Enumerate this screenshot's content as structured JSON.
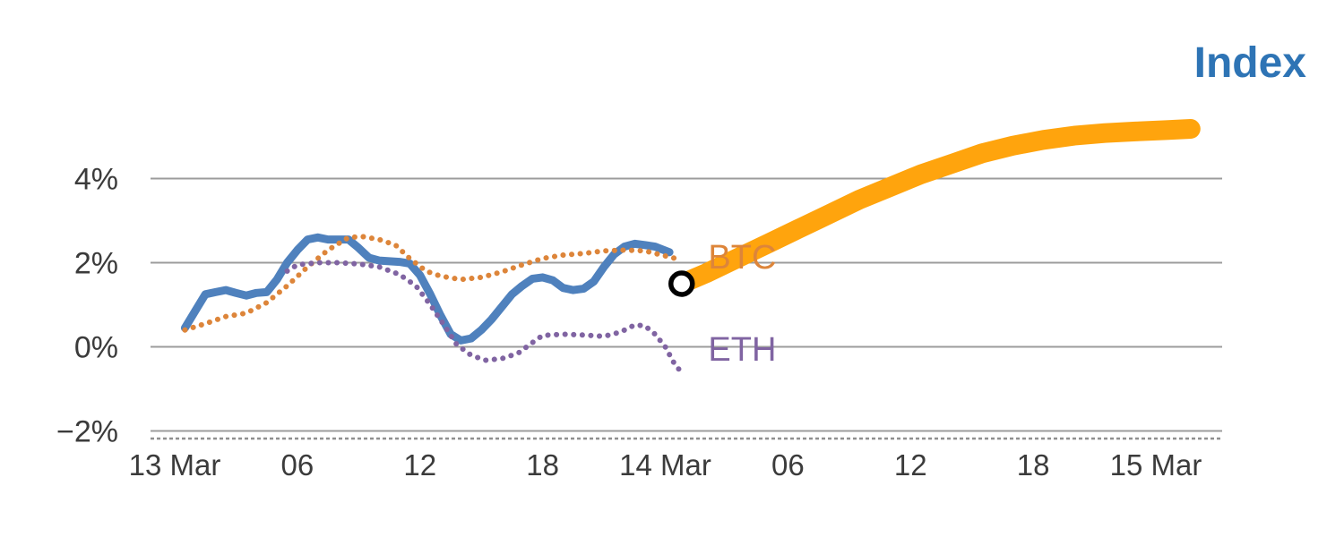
{
  "title": "Index",
  "colors": {
    "title": "#2e74b5",
    "grid": "#9c9c9c",
    "axis": "#8f8f8f",
    "tick_text": "#3b3b3b"
  },
  "chart_data": {
    "type": "line",
    "title": "Index",
    "x_unit": "hours since 13 Mar 00:00",
    "y_unit": "percent change",
    "ylim": [
      -2.2,
      5.5
    ],
    "grid": "horizontal-on",
    "legend_position": "inline-labels",
    "x_axis": {
      "ticks": [
        {
          "t": 0,
          "label": "13 Mar"
        },
        {
          "t": 6,
          "label": "06"
        },
        {
          "t": 12,
          "label": "12"
        },
        {
          "t": 18,
          "label": "18"
        },
        {
          "t": 24,
          "label": "14 Mar"
        },
        {
          "t": 30,
          "label": "06"
        },
        {
          "t": 36,
          "label": "12"
        },
        {
          "t": 42,
          "label": "18"
        },
        {
          "t": 48,
          "label": "15 Mar"
        }
      ]
    },
    "y_axis": {
      "ticks": [
        {
          "value": 4,
          "label": "4%"
        },
        {
          "value": 2,
          "label": "2%"
        },
        {
          "value": 0,
          "label": "0%"
        },
        {
          "value": -2,
          "label": "−2%"
        }
      ]
    },
    "series": [
      {
        "name": "Index",
        "data_name": "index-line",
        "color": "#4f81bd",
        "style": "solid",
        "width": 9,
        "points": [
          [
            0.5,
            0.45
          ],
          [
            1,
            0.85
          ],
          [
            1.5,
            1.25
          ],
          [
            2,
            1.3
          ],
          [
            2.5,
            1.35
          ],
          [
            3,
            1.28
          ],
          [
            3.5,
            1.22
          ],
          [
            4,
            1.28
          ],
          [
            4.5,
            1.3
          ],
          [
            5,
            1.6
          ],
          [
            5.5,
            2.0
          ],
          [
            6,
            2.3
          ],
          [
            6.5,
            2.55
          ],
          [
            7,
            2.6
          ],
          [
            7.5,
            2.55
          ],
          [
            8.5,
            2.55
          ],
          [
            9,
            2.35
          ],
          [
            9.5,
            2.12
          ],
          [
            10,
            2.05
          ],
          [
            11,
            2.02
          ],
          [
            11.5,
            1.98
          ],
          [
            12,
            1.7
          ],
          [
            12.5,
            1.25
          ],
          [
            13,
            0.75
          ],
          [
            13.5,
            0.3
          ],
          [
            14,
            0.15
          ],
          [
            14.5,
            0.2
          ],
          [
            15,
            0.4
          ],
          [
            15.5,
            0.65
          ],
          [
            16,
            0.95
          ],
          [
            16.5,
            1.25
          ],
          [
            17,
            1.45
          ],
          [
            17.5,
            1.62
          ],
          [
            18,
            1.65
          ],
          [
            18.5,
            1.58
          ],
          [
            19,
            1.4
          ],
          [
            19.5,
            1.35
          ],
          [
            20,
            1.38
          ],
          [
            20.5,
            1.55
          ],
          [
            21,
            1.9
          ],
          [
            21.5,
            2.2
          ],
          [
            22,
            2.38
          ],
          [
            22.5,
            2.45
          ],
          [
            23,
            2.42
          ],
          [
            23.5,
            2.38
          ],
          [
            24.2,
            2.25
          ]
        ]
      },
      {
        "name": "BTC",
        "data_name": "btc-line",
        "color": "#dd853a",
        "style": "dotted",
        "width": 6,
        "points": [
          [
            0.5,
            0.4
          ],
          [
            1.5,
            0.55
          ],
          [
            2.5,
            0.72
          ],
          [
            3.5,
            0.8
          ],
          [
            4.5,
            1.05
          ],
          [
            5.5,
            1.45
          ],
          [
            6.5,
            1.9
          ],
          [
            7.5,
            2.3
          ],
          [
            8.5,
            2.6
          ],
          [
            9.2,
            2.62
          ],
          [
            10,
            2.55
          ],
          [
            10.8,
            2.42
          ],
          [
            11.5,
            2.1
          ],
          [
            12.3,
            1.8
          ],
          [
            13,
            1.68
          ],
          [
            14,
            1.6
          ],
          [
            15,
            1.65
          ],
          [
            16,
            1.78
          ],
          [
            17,
            1.95
          ],
          [
            18,
            2.1
          ],
          [
            19,
            2.18
          ],
          [
            20,
            2.22
          ],
          [
            21,
            2.28
          ],
          [
            22,
            2.3
          ],
          [
            23,
            2.28
          ],
          [
            24.5,
            2.1
          ]
        ]
      },
      {
        "name": "ETH",
        "data_name": "eth-line",
        "color": "#8064a2",
        "style": "dotted",
        "width": 6,
        "points": [
          [
            5.5,
            1.8
          ],
          [
            6,
            1.95
          ],
          [
            7,
            2.0
          ],
          [
            8,
            2.0
          ],
          [
            9,
            1.97
          ],
          [
            10,
            1.9
          ],
          [
            11,
            1.72
          ],
          [
            11.8,
            1.45
          ],
          [
            12.5,
            1.0
          ],
          [
            13.2,
            0.5
          ],
          [
            13.8,
            0.05
          ],
          [
            14.5,
            -0.2
          ],
          [
            15.2,
            -0.32
          ],
          [
            16,
            -0.28
          ],
          [
            16.8,
            -0.15
          ],
          [
            17.5,
            0.1
          ],
          [
            18,
            0.27
          ],
          [
            19,
            0.3
          ],
          [
            20,
            0.28
          ],
          [
            21,
            0.25
          ],
          [
            21.8,
            0.35
          ],
          [
            22.5,
            0.52
          ],
          [
            23,
            0.5
          ],
          [
            23.5,
            0.3
          ],
          [
            24,
            0.0
          ],
          [
            24.5,
            -0.45
          ],
          [
            24.8,
            -0.6
          ]
        ]
      },
      {
        "name": "Index forecast",
        "data_name": "index-forecast-line",
        "color": "#ffa40d",
        "style": "solid",
        "width": 22,
        "points": [
          [
            24.8,
            1.5
          ],
          [
            26,
            1.75
          ],
          [
            27.5,
            2.1
          ],
          [
            29,
            2.45
          ],
          [
            30.5,
            2.8
          ],
          [
            32,
            3.15
          ],
          [
            33.5,
            3.5
          ],
          [
            35,
            3.8
          ],
          [
            36.5,
            4.1
          ],
          [
            38,
            4.35
          ],
          [
            39.5,
            4.6
          ],
          [
            41,
            4.78
          ],
          [
            42.5,
            4.92
          ],
          [
            44,
            5.02
          ],
          [
            45.5,
            5.08
          ],
          [
            47,
            5.12
          ],
          [
            48.5,
            5.15
          ],
          [
            49.7,
            5.18
          ]
        ]
      }
    ],
    "marker": {
      "name": "current-value-marker",
      "t": 24.8,
      "value": 1.5,
      "stroke": "#000000",
      "fill": "#ffffff"
    },
    "annotations": [
      {
        "text": "BTC",
        "data_name": "btc-series-label",
        "t": 26.1,
        "value": 1.86,
        "color": "#dd853a"
      },
      {
        "text": "ETH",
        "data_name": "eth-series-label",
        "t": 26.1,
        "value": -0.33,
        "color": "#8064a2"
      }
    ]
  }
}
